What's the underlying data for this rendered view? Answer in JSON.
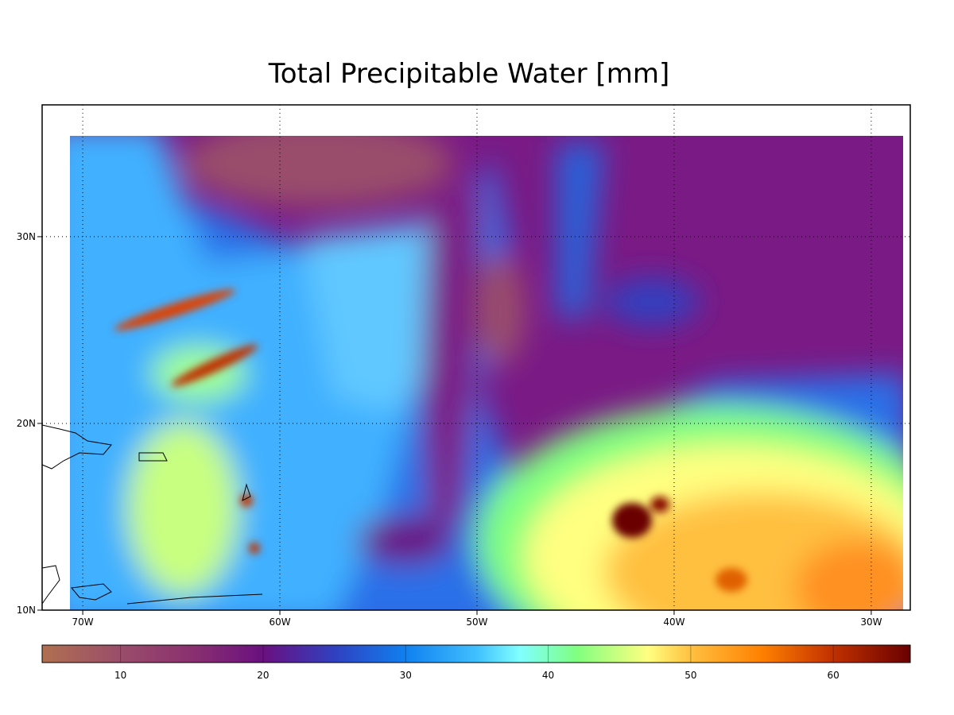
{
  "map": {
    "title": "Total Precipitable Water [mm]",
    "lon_axis": {
      "lim": [
        -72.06,
        -28.02
      ],
      "grid": true,
      "ticks": [
        {
          "value": -70,
          "label": "70W"
        },
        {
          "value": -60,
          "label": "60W"
        },
        {
          "value": -50,
          "label": "50W"
        },
        {
          "value": -40,
          "label": "40W"
        },
        {
          "value": -30,
          "label": "30W"
        }
      ]
    },
    "lat_axis": {
      "lim": [
        10,
        37.06
      ],
      "grid": true,
      "ticks": [
        {
          "value": 10,
          "label": "10N"
        },
        {
          "value": 20,
          "label": "20N"
        },
        {
          "value": 30,
          "label": "30N"
        }
      ]
    },
    "colorbar": {
      "lim": [
        4.5,
        65.4
      ],
      "ticks": [
        10,
        20,
        30,
        40,
        50,
        60
      ],
      "colormap": [
        [
          4.5,
          "#b07050"
        ],
        [
          10,
          "#9a4d6a"
        ],
        [
          15,
          "#8a3070"
        ],
        [
          20,
          "#6a1080"
        ],
        [
          25,
          "#3040c0"
        ],
        [
          30,
          "#1080f0"
        ],
        [
          35,
          "#40c0ff"
        ],
        [
          38,
          "#80ffff"
        ],
        [
          42,
          "#80ff80"
        ],
        [
          47,
          "#ffff80"
        ],
        [
          50,
          "#ffc040"
        ],
        [
          55,
          "#ff8000"
        ],
        [
          60,
          "#c03000"
        ],
        [
          65.4,
          "#6a0000"
        ]
      ]
    }
  }
}
